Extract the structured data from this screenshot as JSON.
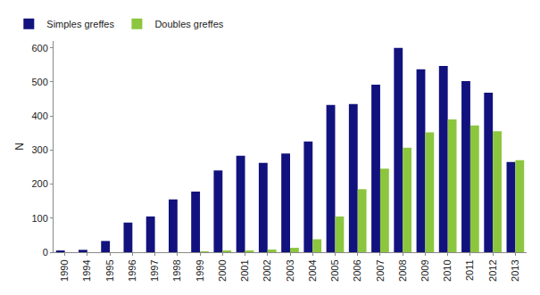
{
  "chart_data": {
    "type": "bar",
    "y_label": "N",
    "categories": [
      "1990",
      "1994",
      "1995",
      "1996",
      "1997",
      "1998",
      "1999",
      "2000",
      "2001",
      "2002",
      "2003",
      "2004",
      "2005",
      "2006",
      "2007",
      "2008",
      "2009",
      "2010",
      "2011",
      "2012",
      "2013"
    ],
    "series": [
      {
        "name": "Simples greffes",
        "color": "#12127e",
        "values": [
          3,
          7,
          33,
          87,
          105,
          155,
          178,
          240,
          283,
          262,
          290,
          325,
          432,
          435,
          492,
          600,
          537,
          547,
          502,
          468,
          265
        ]
      },
      {
        "name": "Doubles greffes",
        "color": "#8cc63f",
        "values": [
          0,
          0,
          0,
          0,
          0,
          0,
          2,
          3,
          5,
          8,
          13,
          38,
          105,
          185,
          245,
          307,
          352,
          390,
          372,
          355,
          270
        ]
      }
    ],
    "ylim": [
      0,
      620
    ],
    "yticks": [
      0,
      100,
      200,
      300,
      400,
      500,
      600
    ],
    "grid": false,
    "legend": "top left"
  }
}
